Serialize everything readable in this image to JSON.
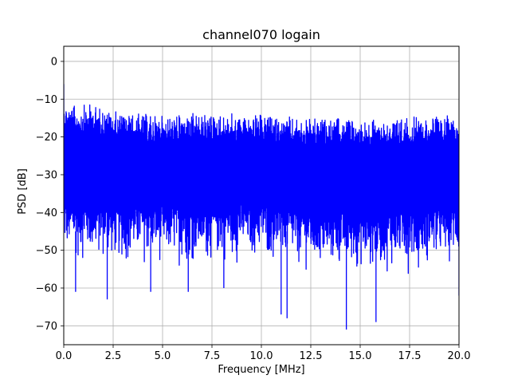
{
  "chart_data": {
    "type": "line",
    "title": "channel070 logain",
    "xlabel": "Frequency [MHz]",
    "ylabel": "PSD [dB]",
    "xlim": [
      0,
      20
    ],
    "ylim": [
      -75,
      4
    ],
    "xticks": [
      0,
      2.5,
      5,
      7.5,
      10,
      12.5,
      15,
      17.5,
      20
    ],
    "xtick_labels": [
      "0.0",
      "2.5",
      "5.0",
      "7.5",
      "10.0",
      "12.5",
      "15.0",
      "17.5",
      "20.0"
    ],
    "yticks": [
      0,
      -10,
      -20,
      -30,
      -40,
      -50,
      -60,
      -70
    ],
    "ytick_labels": [
      "0",
      "−10",
      "−20",
      "−30",
      "−40",
      "−50",
      "−60",
      "−70"
    ],
    "grid": true,
    "series": [
      {
        "color": "#0000ff",
        "start_value_db": -6,
        "envelope_upper": {
          "x": [
            0,
            0.5,
            1.5,
            2.5,
            5,
            7.5,
            10,
            12.5,
            15,
            17.5,
            20
          ],
          "y": [
            -10,
            -11.5,
            -11,
            -13,
            -14,
            -13.5,
            -14,
            -15,
            -15,
            -14.5,
            -14
          ]
        },
        "envelope_lower": {
          "x": [
            0,
            2.5,
            5,
            7.5,
            10,
            12.5,
            15,
            17.5,
            20
          ],
          "y": [
            -55,
            -56,
            -56,
            -56,
            -55,
            -58,
            -58,
            -57,
            -56
          ]
        },
        "notable_dips": {
          "x": [
            0.6,
            2.2,
            4.4,
            6.3,
            8.1,
            11.0,
            11.3,
            14.3,
            15.8,
            20.0
          ],
          "y": [
            -61,
            -63,
            -61,
            -61,
            -60,
            -67,
            -68,
            -71,
            -69,
            -62
          ]
        }
      }
    ]
  }
}
